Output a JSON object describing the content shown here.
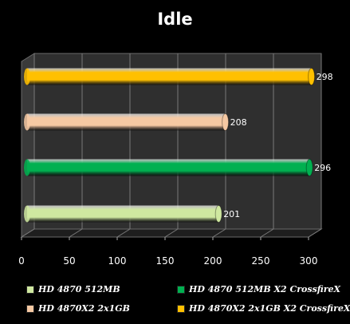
{
  "chart_data": {
    "type": "bar",
    "title": "Idle",
    "orientation": "horizontal",
    "style": "3d-cylinder",
    "xlim": [
      0,
      300
    ],
    "xticks": [
      "0",
      "50",
      "100",
      "150",
      "200",
      "250",
      "300"
    ],
    "grid": true,
    "legend_position": "bottom",
    "series": [
      {
        "name": "HD 4870 512MB",
        "value": 201,
        "label": "201",
        "color": "#cfe8a0"
      },
      {
        "name": "HD 4870 512MB X2 CrossfireX",
        "value": 296,
        "label": "296",
        "color": "#00b050"
      },
      {
        "name": "HD 4870X2 2x1GB",
        "value": 208,
        "label": "208",
        "color": "#f6c9a3"
      },
      {
        "name": "HD 4870X2 2x1GB X2 CrossfireX",
        "value": 298,
        "label": "298",
        "color": "#ffc000"
      }
    ]
  }
}
